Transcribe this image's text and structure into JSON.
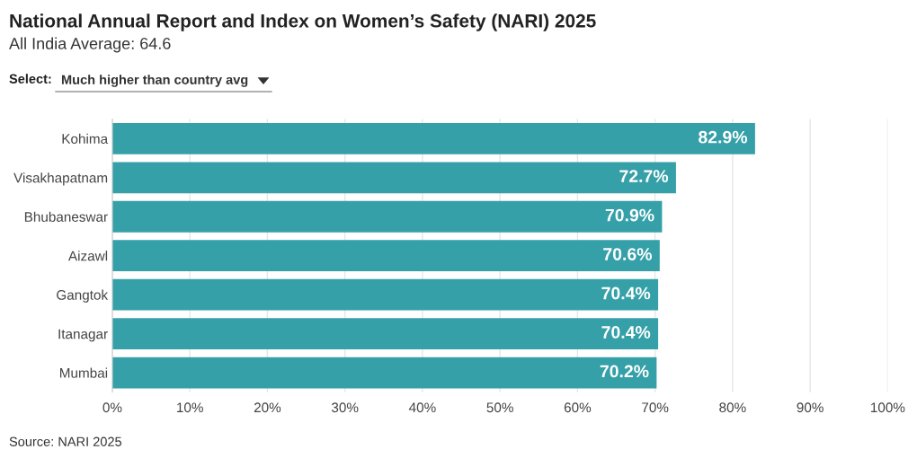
{
  "chart_data": {
    "type": "bar",
    "orientation": "horizontal",
    "title": "National Annual Report and Index on Women’s Safety (NARI) 2025",
    "subtitle": "All India Average: 64.6",
    "categories": [
      "Kohima",
      "Visakhapatnam",
      "Bhubaneswar",
      "Aizawl",
      "Gangtok",
      "Itanagar",
      "Mumbai"
    ],
    "values": [
      82.9,
      72.7,
      70.9,
      70.6,
      70.4,
      70.4,
      70.2
    ],
    "value_labels": [
      "82.9%",
      "72.7%",
      "70.9%",
      "70.6%",
      "70.4%",
      "70.4%",
      "70.2%"
    ],
    "color": "#35a0a8",
    "xlim": [
      0,
      100
    ],
    "xticks": [
      {
        "value": 0,
        "label": "0%"
      },
      {
        "value": 10,
        "label": "10%"
      },
      {
        "value": 20,
        "label": "20%"
      },
      {
        "value": 30,
        "label": "30%"
      },
      {
        "value": 40,
        "label": "40%"
      },
      {
        "value": 50,
        "label": "50%"
      },
      {
        "value": 60,
        "label": "60%"
      },
      {
        "value": 70,
        "label": "70%"
      },
      {
        "value": 80,
        "label": "80%"
      },
      {
        "value": 90,
        "label": "90%"
      },
      {
        "value": 100,
        "label": "100%"
      }
    ],
    "grid": "x",
    "legend": false,
    "annotations": [
      "Select:",
      "Much higher than country avg",
      "Source: NARI 2025"
    ]
  }
}
